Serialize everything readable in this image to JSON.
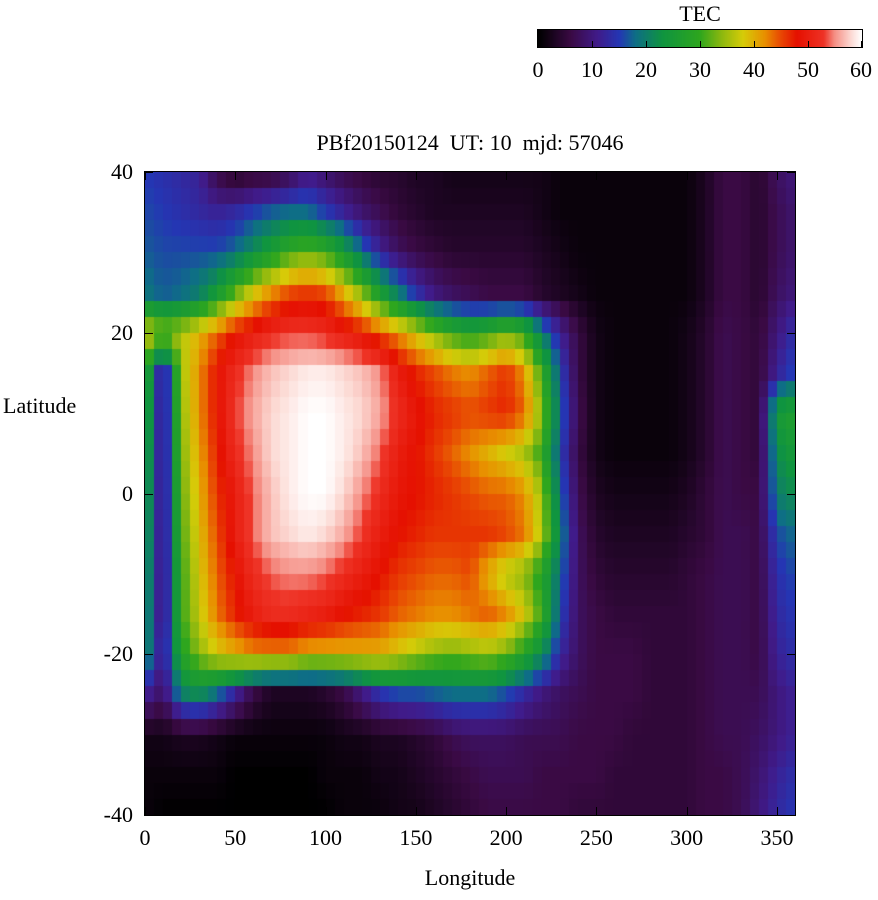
{
  "title": "PBf20150124  UT: 10  mjd: 57046",
  "colorbar": {
    "label": "TEC",
    "min": 0,
    "max": 60,
    "ticks": [
      0,
      10,
      20,
      30,
      40,
      50,
      60
    ],
    "palette": [
      [
        0,
        "#000000"
      ],
      [
        6,
        "#3a0a44"
      ],
      [
        11,
        "#401b8a"
      ],
      [
        15,
        "#2436b4"
      ],
      [
        18,
        "#0e6e86"
      ],
      [
        23,
        "#0f9440"
      ],
      [
        30,
        "#2ea61e"
      ],
      [
        34,
        "#8cb80f"
      ],
      [
        38,
        "#d6cc08"
      ],
      [
        42,
        "#e89000"
      ],
      [
        45,
        "#e84803"
      ],
      [
        48,
        "#e51000"
      ],
      [
        53,
        "#ee3326"
      ],
      [
        55,
        "#f58f85"
      ],
      [
        58,
        "#fcd8d2"
      ],
      [
        60,
        "#ffffff"
      ]
    ]
  },
  "axes": {
    "x": {
      "label": "Longitude",
      "min": 0,
      "max": 360,
      "ticks": [
        0,
        50,
        100,
        150,
        200,
        250,
        300,
        350
      ]
    },
    "y": {
      "label": "Latitude",
      "min": -40,
      "max": 40,
      "ticks": [
        40,
        20,
        0,
        -20,
        -40
      ]
    }
  },
  "chart_data": {
    "type": "heatmap",
    "title": "PBf20150124  UT: 10  mjd: 57046",
    "xlabel": "Longitude",
    "ylabel": "Latitude",
    "colorbar_label": "TEC",
    "colorbar_range": [
      0,
      60
    ],
    "x_range": [
      0,
      360
    ],
    "y_range": [
      -40,
      40
    ],
    "lons": [
      0,
      10,
      20,
      30,
      40,
      50,
      60,
      70,
      80,
      90,
      100,
      110,
      120,
      130,
      140,
      150,
      160,
      170,
      180,
      190,
      200,
      210,
      220,
      230,
      240,
      250,
      260,
      270,
      280,
      290,
      300,
      310,
      320,
      330,
      340,
      350,
      360
    ],
    "lats": [
      40,
      35,
      30,
      25,
      20,
      15,
      10,
      5,
      0,
      -5,
      -10,
      -15,
      -20,
      -25,
      -30,
      -35,
      -40
    ],
    "grid_note": "TEC values; rows ordered lat 40 (top) to -40 (bottom), cols lon 0 to 360",
    "grid": [
      [
        15,
        14,
        13,
        12,
        6,
        3,
        4,
        4,
        6,
        10,
        8,
        6,
        5,
        4,
        4,
        3,
        3,
        2,
        2,
        2,
        2,
        2,
        2,
        1,
        1,
        1,
        1,
        1,
        1,
        1,
        1,
        3,
        6,
        6,
        4,
        8,
        10
      ],
      [
        16,
        15,
        14,
        13,
        12,
        13,
        15,
        17,
        18,
        18,
        15,
        12,
        9,
        7,
        5,
        4,
        3,
        3,
        3,
        3,
        3,
        3,
        2,
        1,
        1,
        1,
        1,
        1,
        1,
        1,
        1,
        3,
        6,
        6,
        4,
        7,
        9
      ],
      [
        17,
        16,
        16,
        16,
        16,
        18,
        22,
        26,
        30,
        32,
        30,
        25,
        18,
        12,
        8,
        6,
        5,
        4,
        4,
        4,
        4,
        4,
        3,
        2,
        1,
        1,
        1,
        1,
        1,
        1,
        1,
        3,
        6,
        6,
        4,
        7,
        9
      ],
      [
        19,
        17,
        18,
        20,
        25,
        32,
        38,
        42,
        45,
        46,
        45,
        40,
        34,
        26,
        20,
        14,
        10,
        8,
        7,
        6,
        6,
        6,
        4,
        3,
        2,
        1,
        1,
        1,
        1,
        1,
        1,
        3,
        6,
        6,
        4,
        8,
        10
      ],
      [
        38,
        34,
        36,
        40,
        44,
        48,
        50,
        52,
        53,
        53,
        52,
        50,
        48,
        45,
        42,
        38,
        34,
        30,
        28,
        30,
        33,
        30,
        20,
        12,
        6,
        2,
        1,
        1,
        1,
        1,
        2,
        4,
        7,
        6,
        5,
        10,
        14
      ],
      [
        30,
        8,
        35,
        42,
        48,
        52,
        55,
        57,
        58,
        59,
        59,
        58,
        57,
        55,
        50,
        47,
        45,
        43,
        42,
        44,
        46,
        42,
        30,
        16,
        6,
        2,
        1,
        1,
        1,
        1,
        2,
        4,
        7,
        6,
        5,
        12,
        16
      ],
      [
        28,
        8,
        34,
        42,
        48,
        53,
        56,
        58,
        59,
        60,
        60,
        59,
        58,
        56,
        52,
        49,
        47,
        46,
        45,
        46,
        47,
        44,
        34,
        18,
        7,
        2,
        1,
        1,
        1,
        1,
        2,
        4,
        7,
        6,
        5,
        25,
        27
      ],
      [
        27,
        8,
        33,
        41,
        47,
        52,
        55,
        58,
        59,
        60,
        60,
        59,
        57,
        54,
        50,
        48,
        46,
        44,
        42,
        40,
        38,
        36,
        30,
        16,
        6,
        2,
        1,
        1,
        1,
        1,
        2,
        4,
        7,
        6,
        5,
        22,
        25
      ],
      [
        26,
        8,
        32,
        40,
        46,
        50,
        54,
        57,
        59,
        60,
        60,
        58,
        55,
        52,
        49,
        48,
        47,
        46,
        45,
        44,
        44,
        42,
        35,
        18,
        7,
        3,
        2,
        2,
        2,
        2,
        3,
        5,
        7,
        6,
        6,
        20,
        22
      ],
      [
        25,
        8,
        31,
        39,
        45,
        50,
        54,
        57,
        58,
        59,
        58,
        56,
        53,
        50,
        48,
        47,
        46,
        46,
        46,
        46,
        45,
        43,
        36,
        20,
        8,
        4,
        3,
        3,
        3,
        3,
        4,
        5,
        7,
        7,
        6,
        16,
        18
      ],
      [
        24,
        8,
        30,
        38,
        44,
        48,
        52,
        54,
        55,
        55,
        54,
        52,
        50,
        48,
        46,
        45,
        44,
        44,
        45,
        40,
        36,
        34,
        28,
        18,
        8,
        5,
        4,
        4,
        4,
        4,
        5,
        6,
        7,
        7,
        6,
        14,
        16
      ],
      [
        23,
        8,
        30,
        37,
        43,
        47,
        50,
        52,
        52,
        51,
        50,
        48,
        47,
        46,
        44,
        43,
        42,
        42,
        43,
        44,
        42,
        38,
        30,
        16,
        8,
        6,
        5,
        5,
        5,
        5,
        5,
        6,
        7,
        7,
        6,
        13,
        15
      ],
      [
        22,
        10,
        28,
        34,
        38,
        40,
        42,
        42,
        42,
        40,
        40,
        40,
        40,
        40,
        38,
        36,
        34,
        33,
        34,
        35,
        33,
        28,
        22,
        13,
        8,
        6,
        6,
        6,
        5,
        5,
        5,
        6,
        7,
        7,
        6,
        12,
        14
      ],
      [
        12,
        8,
        20,
        22,
        18,
        12,
        6,
        3,
        3,
        3,
        4,
        6,
        10,
        14,
        16,
        16,
        17,
        18,
        18,
        18,
        16,
        13,
        10,
        8,
        7,
        6,
        6,
        6,
        5,
        5,
        5,
        6,
        7,
        7,
        7,
        10,
        12
      ],
      [
        2,
        2,
        3,
        3,
        2,
        1,
        1,
        1,
        1,
        1,
        1,
        2,
        2,
        3,
        3,
        4,
        5,
        7,
        8,
        8,
        8,
        7,
        7,
        7,
        6,
        6,
        6,
        5,
        5,
        5,
        5,
        6,
        7,
        7,
        8,
        10,
        12
      ],
      [
        1,
        1,
        1,
        1,
        1,
        0,
        0,
        0,
        0,
        0,
        1,
        1,
        1,
        2,
        2,
        3,
        4,
        5,
        6,
        7,
        7,
        7,
        6,
        6,
        6,
        6,
        5,
        5,
        5,
        5,
        5,
        6,
        6,
        7,
        9,
        12,
        14
      ],
      [
        1,
        0,
        0,
        0,
        0,
        0,
        0,
        0,
        0,
        0,
        0,
        1,
        1,
        1,
        2,
        2,
        3,
        4,
        5,
        6,
        6,
        6,
        6,
        6,
        5,
        5,
        5,
        5,
        5,
        5,
        5,
        6,
        6,
        7,
        10,
        13,
        15
      ]
    ]
  }
}
